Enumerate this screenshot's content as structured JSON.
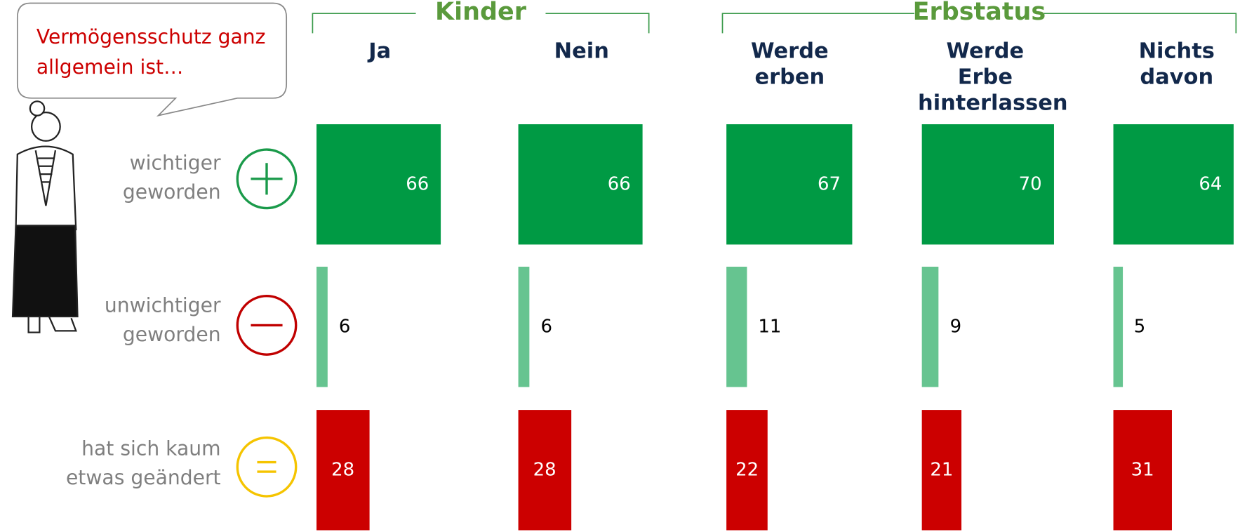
{
  "speech": "Vermögensschutz ganz allgemein ist…",
  "chart_data": {
    "type": "bar",
    "groups": [
      {
        "name": "Kinder",
        "categories": [
          "Ja",
          "Nein"
        ]
      },
      {
        "name": "Erbstatus",
        "categories": [
          "Werde erben",
          "Werde Erbe hinterlassen",
          "Nichts davon"
        ]
      }
    ],
    "series": [
      {
        "name": "wichtiger geworden",
        "color": "#009a44",
        "values": [
          66,
          66,
          67,
          70,
          64
        ]
      },
      {
        "name": "unwichtiger geworden",
        "color": "#66c490",
        "values": [
          6,
          6,
          11,
          9,
          5
        ]
      },
      {
        "name": "hat sich kaum etwas geändert",
        "color": "#cc0000",
        "values": [
          28,
          28,
          22,
          21,
          31
        ]
      }
    ]
  }
}
